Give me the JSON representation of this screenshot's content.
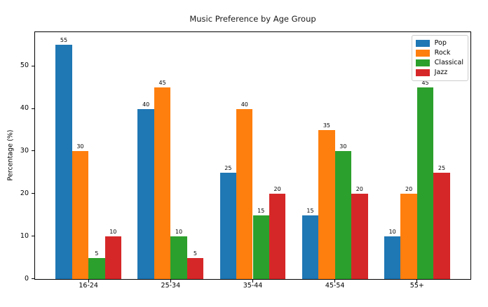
{
  "chart_data": {
    "type": "bar",
    "title": "Music Preference by Age Group",
    "xlabel": "",
    "ylabel": "Percentage (%)",
    "categories": [
      "16-24",
      "25-34",
      "35-44",
      "45-54",
      "55+"
    ],
    "series": [
      {
        "name": "Pop",
        "color": "#1f77b4",
        "values": [
          55,
          40,
          25,
          15,
          10
        ]
      },
      {
        "name": "Rock",
        "color": "#ff7f0e",
        "values": [
          30,
          45,
          40,
          35,
          20
        ]
      },
      {
        "name": "Classical",
        "color": "#2ca02c",
        "values": [
          5,
          10,
          15,
          30,
          45
        ]
      },
      {
        "name": "Jazz",
        "color": "#d62728",
        "values": [
          10,
          5,
          20,
          20,
          25
        ]
      }
    ],
    "bar_value_labels": true,
    "yticks": [
      0,
      10,
      20,
      30,
      40,
      50
    ],
    "ylim": [
      0,
      58
    ],
    "grid": false,
    "legend_position": "upper right"
  }
}
